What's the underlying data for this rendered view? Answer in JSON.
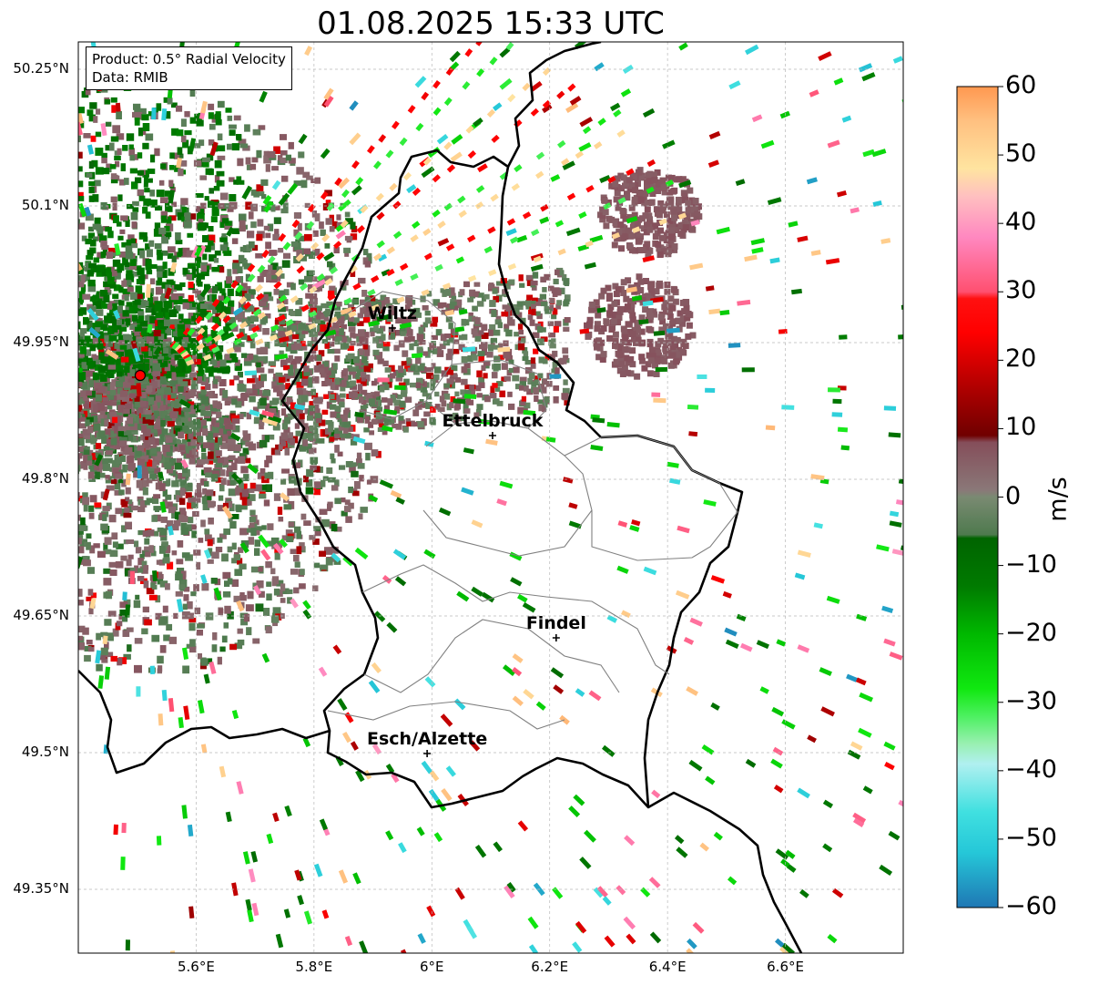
{
  "title": "01.08.2025 15:33 UTC",
  "info_box": {
    "product": "Product: 0.5° Radial Velocity",
    "data": "Data: RMIB"
  },
  "map": {
    "lon_range": [
      5.4,
      6.8
    ],
    "lat_range": [
      49.28,
      50.28
    ],
    "lat_ticks": [
      {
        "value": 50.25,
        "label": "50.25°N"
      },
      {
        "value": 50.1,
        "label": "50.1°N"
      },
      {
        "value": 49.95,
        "label": "49.95°N"
      },
      {
        "value": 49.8,
        "label": "49.8°N"
      },
      {
        "value": 49.65,
        "label": "49.65°N"
      },
      {
        "value": 49.5,
        "label": "49.5°N"
      },
      {
        "value": 49.35,
        "label": "49.35°N"
      }
    ],
    "lon_ticks": [
      {
        "value": 5.6,
        "label": "5.6°E"
      },
      {
        "value": 5.8,
        "label": "5.8°E"
      },
      {
        "value": 6.0,
        "label": "6°E"
      },
      {
        "value": 6.2,
        "label": "6.2°E"
      },
      {
        "value": 6.4,
        "label": "6.4°E"
      },
      {
        "value": 6.6,
        "label": "6.6°E"
      }
    ],
    "radar_site": {
      "lon": 5.505,
      "lat": 49.914,
      "color": "#ff0000"
    },
    "cities": [
      {
        "name": "Wiltz",
        "lon": 5.933,
        "lat": 49.966
      },
      {
        "name": "Ettelbruck",
        "lon": 6.103,
        "lat": 49.848
      },
      {
        "name": "Findel",
        "lon": 6.211,
        "lat": 49.626
      },
      {
        "name": "Esch/Alzette",
        "lon": 5.992,
        "lat": 49.499
      }
    ],
    "border_color": "#000000",
    "canton_color": "#808080"
  },
  "colorbar": {
    "label": "m/s",
    "min": -60,
    "max": 60,
    "ticks": [
      {
        "value": 60,
        "label": "60"
      },
      {
        "value": 50,
        "label": "50"
      },
      {
        "value": 40,
        "label": "40"
      },
      {
        "value": 30,
        "label": "30"
      },
      {
        "value": 20,
        "label": "20"
      },
      {
        "value": 10,
        "label": "10"
      },
      {
        "value": 0,
        "label": "0"
      },
      {
        "value": -10,
        "label": "−10"
      },
      {
        "value": -20,
        "label": "−20"
      },
      {
        "value": -30,
        "label": "−30"
      },
      {
        "value": -40,
        "label": "−40"
      },
      {
        "value": -50,
        "label": "−50"
      },
      {
        "value": -60,
        "label": "−60"
      }
    ],
    "stops": [
      {
        "v": -60,
        "c": "#1f77b4"
      },
      {
        "v": -52,
        "c": "#25c7d8"
      },
      {
        "v": -46,
        "c": "#40e0e0"
      },
      {
        "v": -39,
        "c": "#b0f0f0"
      },
      {
        "v": -36,
        "c": "#98f0b0"
      },
      {
        "v": -32,
        "c": "#4cf060"
      },
      {
        "v": -28,
        "c": "#10e810"
      },
      {
        "v": -20,
        "c": "#00b800"
      },
      {
        "v": -13,
        "c": "#007a00"
      },
      {
        "v": -6,
        "c": "#006400"
      },
      {
        "v": -5.5,
        "c": "#4e7a4e"
      },
      {
        "v": 0,
        "c": "#7a8a72"
      },
      {
        "v": 1,
        "c": "#8a7878"
      },
      {
        "v": 8,
        "c": "#854e5a"
      },
      {
        "v": 9,
        "c": "#700000"
      },
      {
        "v": 16,
        "c": "#b00000"
      },
      {
        "v": 24,
        "c": "#ff0000"
      },
      {
        "v": 29,
        "c": "#ff1010"
      },
      {
        "v": 30,
        "c": "#ff5070"
      },
      {
        "v": 38,
        "c": "#ff88c0"
      },
      {
        "v": 44,
        "c": "#ffc0c0"
      },
      {
        "v": 48,
        "c": "#ffe4a0"
      },
      {
        "v": 55,
        "c": "#ffc080"
      },
      {
        "v": 60,
        "c": "#ff9850"
      }
    ]
  }
}
